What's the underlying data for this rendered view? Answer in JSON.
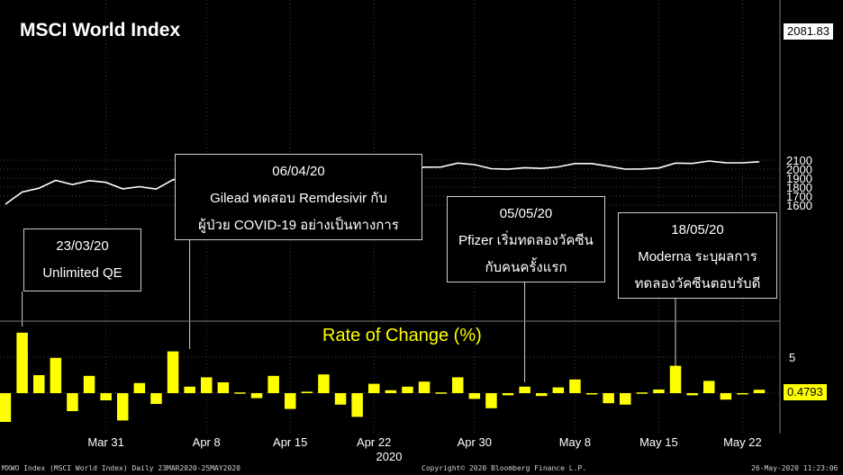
{
  "title": "MSCI World Index",
  "rate_of_change_label": "Rate of Change (%)",
  "last_price_tag": "2081.83",
  "last_roc_tag": "0.4793",
  "colors": {
    "background": "#000000",
    "price_line": "#ffffff",
    "roc_bars": "#ffff00",
    "tag_bg": "#ffffff",
    "roc_tag_bg": "#ffff00"
  },
  "annotations": [
    {
      "date": "23/03/20",
      "text": [
        "Unlimited QE"
      ]
    },
    {
      "date": "06/04/20",
      "text": [
        "Gilead ทดสอบ Remdesivir กับ",
        "ผู้ป่วย COVID-19 อย่างเป็นทางการ"
      ]
    },
    {
      "date": "05/05/20",
      "text": [
        "Pfizer เริ่มทดลองวัคซีน",
        "กับคนครั้งแรก"
      ]
    },
    {
      "date": "18/05/20",
      "text": [
        "Moderna ระบุผลการ",
        "ทดลองวัคซีนตอบรับดี"
      ]
    }
  ],
  "footer": {
    "left": "MXWO Index (MSCI World Index)  Daily 23MAR2020-25MAY2020",
    "center": "Copyright© 2020 Bloomberg Finance L.P.",
    "right": "26-May-2020 11:23:06"
  },
  "chart_data": [
    {
      "type": "line",
      "title": "MSCI World Index",
      "series": [
        {
          "name": "MSCI World Index",
          "x": [
            "2020-03-23",
            "2020-03-24",
            "2020-03-25",
            "2020-03-26",
            "2020-03-27",
            "2020-03-30",
            "2020-03-31",
            "2020-04-01",
            "2020-04-02",
            "2020-04-03",
            "2020-04-06",
            "2020-04-07",
            "2020-04-08",
            "2020-04-09",
            "2020-04-10",
            "2020-04-13",
            "2020-04-14",
            "2020-04-15",
            "2020-04-16",
            "2020-04-17",
            "2020-04-20",
            "2020-04-21",
            "2020-04-22",
            "2020-04-23",
            "2020-04-24",
            "2020-04-27",
            "2020-04-28",
            "2020-04-29",
            "2020-04-30",
            "2020-05-01",
            "2020-05-04",
            "2020-05-05",
            "2020-05-06",
            "2020-05-07",
            "2020-05-08",
            "2020-05-11",
            "2020-05-12",
            "2020-05-13",
            "2020-05-14",
            "2020-05-15",
            "2020-05-18",
            "2020-05-19",
            "2020-05-20",
            "2020-05-21",
            "2020-05-22",
            "2020-05-25"
          ],
          "values": [
            1610,
            1745,
            1788,
            1875,
            1828,
            1872,
            1853,
            1781,
            1805,
            1778,
            1882,
            1898,
            1940,
            1970,
            1972,
            1958,
            2005,
            1960,
            1965,
            2016,
            1983,
            1932,
            1968,
            1975,
            1990,
            2022,
            2023,
            2067,
            2050,
            2005,
            1999,
            2016,
            2008,
            2025,
            2062,
            2062,
            2032,
            2000,
            2002,
            2012,
            2067,
            2063,
            2090,
            2071,
            2070,
            2081.83
          ]
        }
      ],
      "ylim": [
        1550,
        2110
      ],
      "yticks": [
        1600,
        1700,
        1800,
        1900,
        2000,
        2100
      ],
      "grid": true
    },
    {
      "type": "bar",
      "title": "Rate of Change (%)",
      "series": [
        {
          "name": "Rate of Change (%)",
          "values": [
            -4.0,
            8.4,
            2.5,
            4.9,
            -2.5,
            2.4,
            -1.0,
            -3.8,
            1.4,
            -1.5,
            5.8,
            0.9,
            2.2,
            1.5,
            0.1,
            -0.7,
            2.4,
            -2.2,
            0.2,
            2.6,
            -1.6,
            -3.3,
            1.3,
            0.4,
            0.9,
            1.6,
            0.1,
            2.2,
            -0.8,
            -2.1,
            -0.3,
            0.9,
            -0.4,
            0.8,
            1.9,
            0.0,
            -1.4,
            -1.6,
            0.1,
            0.5,
            3.8,
            -0.3,
            1.7,
            -0.9,
            -0.1,
            0.48
          ]
        }
      ],
      "ylim": [
        -6,
        10
      ],
      "yticks": [
        0,
        5
      ],
      "xlabels": [
        "Mar 31",
        "Apr 8",
        "Apr 15",
        "Apr 22",
        "Apr 30",
        "May 8",
        "May 15",
        "May 22"
      ],
      "xlabel_dates": [
        "2020-03-31",
        "2020-04-08",
        "2020-04-15",
        "2020-04-22",
        "2020-04-30",
        "2020-05-08",
        "2020-05-15",
        "2020-05-22"
      ],
      "year_label": "2020"
    }
  ]
}
